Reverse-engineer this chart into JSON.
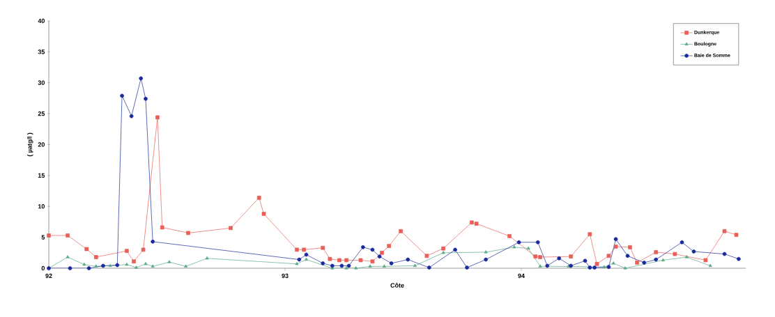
{
  "chart_data": {
    "type": "line",
    "xlabel": "Côte",
    "ylabel": "( µatg/l )",
    "xlim": [
      92,
      94.95
    ],
    "xticks": [
      92,
      93,
      94
    ],
    "ylim": [
      0,
      40
    ],
    "yticks": [
      0,
      5,
      10,
      15,
      20,
      25,
      30,
      35,
      40
    ],
    "grid": false,
    "legend": "top right",
    "series": [
      {
        "name": "Dunkerque",
        "color": "#e8605a",
        "marker": "square",
        "x": [
          92.0,
          92.08,
          92.16,
          92.2,
          92.33,
          92.36,
          92.4,
          92.46,
          92.48,
          92.59,
          92.77,
          92.89,
          92.91,
          93.05,
          93.08,
          93.16,
          93.19,
          93.23,
          93.26,
          93.32,
          93.37,
          93.41,
          93.44,
          93.49,
          93.6,
          93.67,
          93.79,
          93.81,
          93.95,
          94.06,
          94.08,
          94.21,
          94.29,
          94.32,
          94.37,
          94.4,
          94.46,
          94.49,
          94.57,
          94.65,
          94.78,
          94.86,
          94.91
        ],
        "values": [
          5.3,
          5.3,
          3.1,
          1.8,
          2.8,
          1.1,
          3.0,
          24.4,
          6.6,
          5.7,
          6.5,
          11.4,
          8.8,
          3.0,
          3.0,
          3.3,
          1.5,
          1.3,
          1.3,
          1.3,
          1.1,
          2.5,
          3.6,
          6.0,
          2.0,
          3.2,
          7.4,
          7.2,
          5.2,
          1.9,
          1.8,
          1.9,
          5.5,
          0.7,
          2.0,
          3.5,
          3.4,
          0.9,
          2.6,
          2.3,
          1.3,
          6.0,
          5.4
        ]
      },
      {
        "name": "Boulogne",
        "color": "#5aaa88",
        "marker": "triangle",
        "x": [
          92.0,
          92.08,
          92.15,
          92.2,
          92.26,
          92.33,
          92.37,
          92.41,
          92.44,
          92.51,
          92.58,
          92.67,
          93.05,
          93.09,
          93.2,
          93.26,
          93.3,
          93.36,
          93.42,
          93.55,
          93.67,
          93.85,
          93.97,
          94.03,
          94.08,
          94.2,
          94.35,
          94.39,
          94.44,
          94.6,
          94.7,
          94.8
        ],
        "values": [
          0,
          1.8,
          0.6,
          0.3,
          0.4,
          0.6,
          0.1,
          0.7,
          0.3,
          1.0,
          0.3,
          1.6,
          0.7,
          1.4,
          0,
          0,
          0,
          0.3,
          0.3,
          0.4,
          2.5,
          2.6,
          3.4,
          3.2,
          0.3,
          0.3,
          0.2,
          0.8,
          0,
          1.3,
          1.8,
          0.4
        ]
      },
      {
        "name": "Baie de Somme",
        "color": "#1a2a9a",
        "marker": "circle",
        "x": [
          92.0,
          92.09,
          92.17,
          92.23,
          92.29,
          92.31,
          92.35,
          92.39,
          92.41,
          92.44,
          93.06,
          93.09,
          93.16,
          93.2,
          93.24,
          93.27,
          93.33,
          93.37,
          93.4,
          93.45,
          93.52,
          93.61,
          93.72,
          93.77,
          93.85,
          93.99,
          94.07,
          94.11,
          94.16,
          94.21,
          94.27,
          94.29,
          94.31,
          94.37,
          94.4,
          94.45,
          94.52,
          94.57,
          94.68,
          94.73,
          94.86,
          94.92
        ],
        "values": [
          0,
          0,
          0,
          0.4,
          0.5,
          27.9,
          24.6,
          30.7,
          27.4,
          4.3,
          1.4,
          2.2,
          0.8,
          0.4,
          0.4,
          0.4,
          3.4,
          3.0,
          1.9,
          0.8,
          1.4,
          0.1,
          3.0,
          0.1,
          1.4,
          4.2,
          4.2,
          0.4,
          1.6,
          0.4,
          1.2,
          0.1,
          0.1,
          0.2,
          4.7,
          2.0,
          0.9,
          1.4,
          4.2,
          2.7,
          2.3,
          1.5
        ]
      }
    ]
  }
}
